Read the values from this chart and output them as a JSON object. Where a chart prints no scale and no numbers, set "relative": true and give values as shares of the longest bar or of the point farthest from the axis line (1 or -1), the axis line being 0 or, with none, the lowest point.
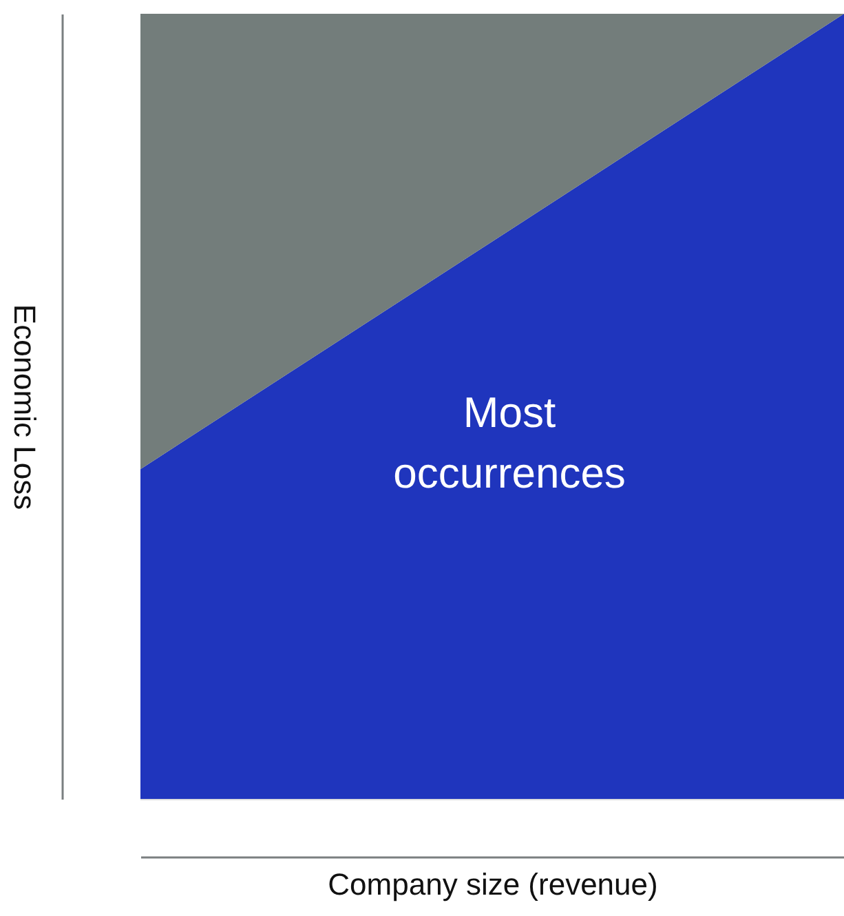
{
  "chart_data": {
    "type": "area",
    "relative": true,
    "stacked": true,
    "xlabel": "Company size (revenue)",
    "ylabel": "Economic Loss",
    "categories": [
      null,
      null
    ],
    "series": [
      {
        "color": "#1f35bd",
        "values": [
          0.42,
          1
        ]
      },
      {
        "color": "#737d7b",
        "values": [
          0.58,
          0
        ]
      }
    ],
    "annotations": [
      "Most\noccurrences"
    ]
  }
}
